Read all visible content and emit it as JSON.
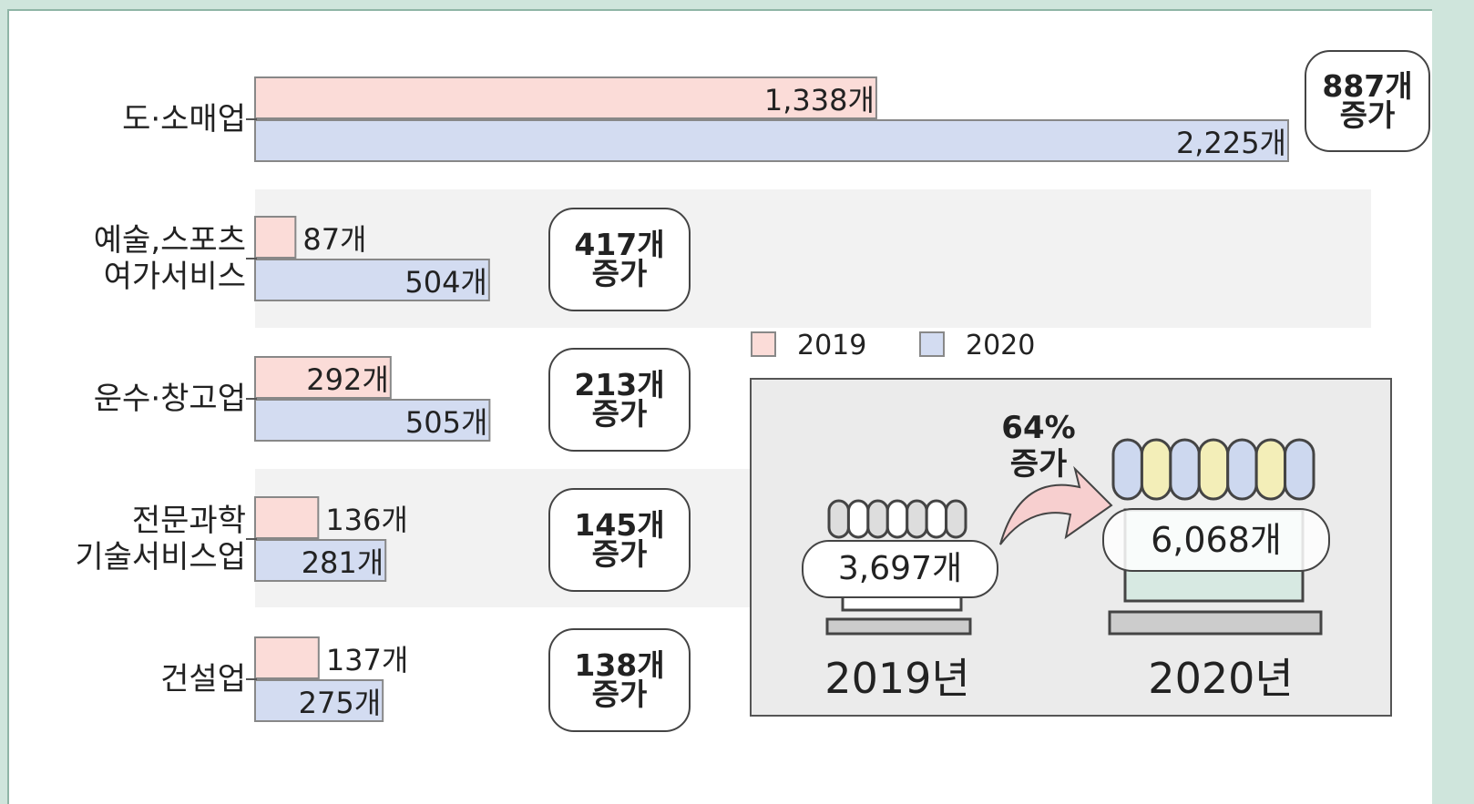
{
  "chart_data": {
    "type": "bar",
    "orientation": "horizontal",
    "categories": [
      "도·소매업",
      "예술,스포츠\n여가서비스",
      "운수·창고업",
      "전문과학\n기술서비스업",
      "건설업"
    ],
    "series": [
      {
        "name": "2019",
        "color": "#fbdcd8",
        "values": [
          1338,
          87,
          292,
          136,
          137
        ],
        "value_labels": [
          "1,338개",
          "87개",
          "292개",
          "136개",
          "137개"
        ]
      },
      {
        "name": "2020",
        "color": "#d3dcf1",
        "values": [
          2225,
          504,
          505,
          281,
          275
        ],
        "value_labels": [
          "2,225개",
          "504개",
          "505개",
          "281개",
          "275개"
        ]
      }
    ],
    "annotations": [
      "887개\n증가",
      "417개\n증가",
      "213개\n증가",
      "145개\n증가",
      "138개\n증가"
    ],
    "inset": {
      "change": "64%\n증가",
      "totals": [
        "3,697개",
        "6,068개"
      ],
      "years": [
        "2019년",
        "2020년"
      ]
    }
  }
}
